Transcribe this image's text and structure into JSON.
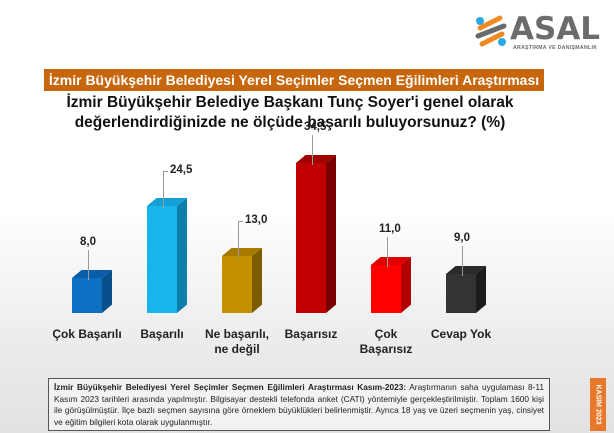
{
  "logo": {
    "name": "ASAL",
    "subtitle": "ARAŞTIRMA VE DANIŞMANLIK",
    "colors": {
      "blue": "#2aa8e0",
      "orange": "#f08a24",
      "gray": "#6b6b6b"
    }
  },
  "banner": {
    "title": "İzmir Büyükşehir Belediyesi Yerel Seçimler Seçmen Eğilimleri Araştırması",
    "color": "#c8660c"
  },
  "question": {
    "line1": "İzmir Büyükşehir Belediye Başkanı Tunç Soyer'i genel olarak",
    "line2": "değerlendirdiğinizde ne ölçüde başarılı buluyorsunuz? (%)"
  },
  "chart_data": {
    "type": "bar",
    "title": "İzmir Büyükşehir Belediye Başkanı Tunç Soyer'i genel olarak değerlendirdiğinizde ne ölçüde başarılı buluyorsunuz? (%)",
    "categories": [
      "Çok Başarılı",
      "Başarılı",
      "Ne başarılı, ne değil",
      "Başarısız",
      "Çok Başarısız",
      "Cevap Yok"
    ],
    "values": [
      8.0,
      24.5,
      13.0,
      34.5,
      11.0,
      9.0
    ],
    "value_labels": [
      "8,0",
      "24,5",
      "13,0",
      "34,5",
      "11,0",
      "9,0"
    ],
    "colors": [
      "#0b6fc4",
      "#18b4ec",
      "#c49000",
      "#c00000",
      "#ff0000",
      "#333333"
    ],
    "side_colors": [
      "#084f8c",
      "#0d7fa8",
      "#7d5c00",
      "#7a0000",
      "#b30000",
      "#1c1c1c"
    ],
    "top_colors": [
      "#0a5ea8",
      "#14a0d4",
      "#a87b00",
      "#a00000",
      "#e00000",
      "#2a2a2a"
    ],
    "xlabel": "",
    "ylabel": "",
    "ylim": [
      0,
      40
    ],
    "grid": false,
    "legend": "none",
    "style": "3d-column"
  },
  "category_labels": [
    {
      "line1": "Çok Başarılı",
      "line2": ""
    },
    {
      "line1": "Başarılı",
      "line2": ""
    },
    {
      "line1": "Ne başarılı,",
      "line2": "ne değil"
    },
    {
      "line1": "Başarısız",
      "line2": ""
    },
    {
      "line1": "Çok",
      "line2": "Başarısız"
    },
    {
      "line1": "Cevap Yok",
      "line2": ""
    }
  ],
  "footer": {
    "bold_lead": "İzmir Büyükşehir Belediyesi Yerel Seçimler Seçmen Eğilimleri Araştırması Kasım-2023:",
    "text": " Araştırmanın saha uygulaması 8-11 Kasım 2023 tarihleri arasında yapılmıştır. Bilgisayar destekli telefonda anket (CATI) yöntemiyle gerçekleştirilmiştir. Toplam 1600 kişi ile görüşülmüştür. İlçe bazlı seçmen sayısına göre örneklem büyüklükleri belirlenmiştir. Ayrıca 18 yaş ve üzeri seçmenin yaş, cinsiyet ve eğitim bilgileri kota olarak uygulanmıştır."
  },
  "badge": {
    "text": "KASIM 2023",
    "color": "#e8782a"
  }
}
